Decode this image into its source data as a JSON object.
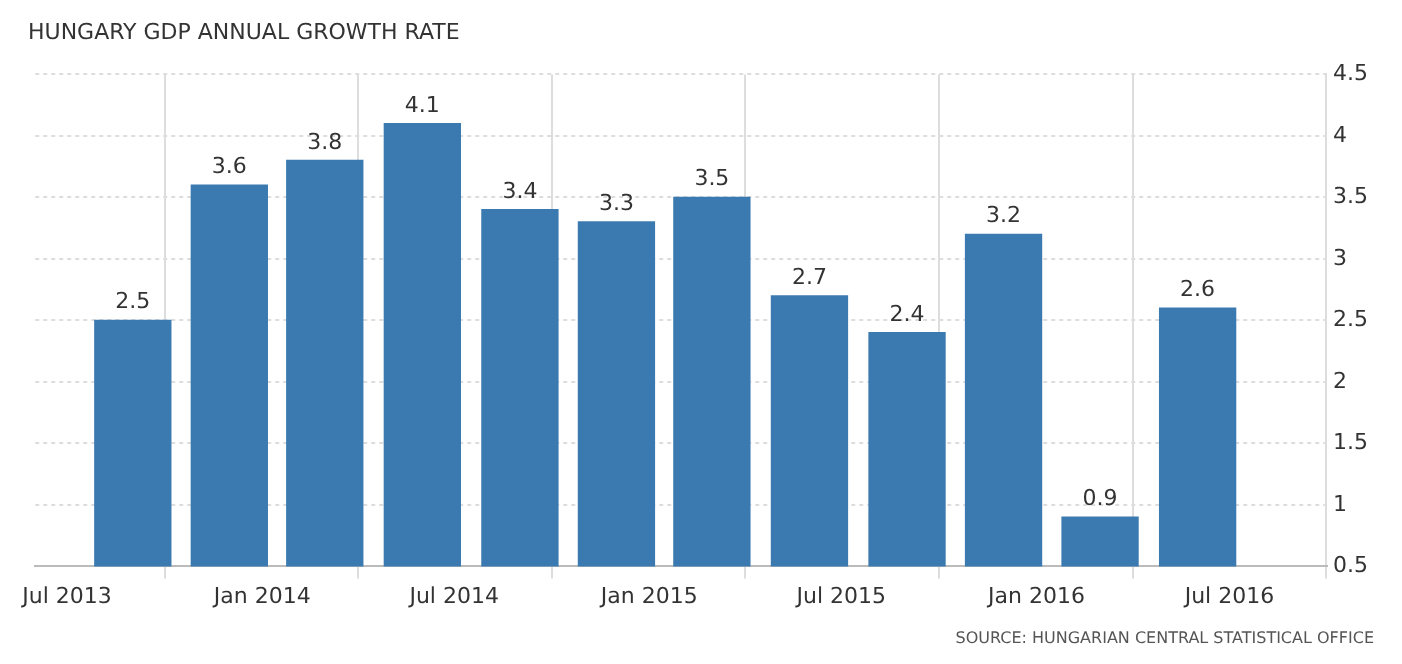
{
  "chart_data": {
    "type": "bar",
    "title": "HUNGARY GDP ANNUAL GROWTH RATE",
    "annotations": [
      "SOURCE: HUNGARIAN CENTRAL STATISTICAL OFFICE"
    ],
    "x": [
      "2013-09",
      "2013-12",
      "2014-03",
      "2014-06",
      "2014-09",
      "2014-12",
      "2015-03",
      "2015-06",
      "2015-09",
      "2015-12",
      "2016-03",
      "2016-06"
    ],
    "values": [
      2.5,
      3.6,
      3.8,
      4.1,
      3.4,
      3.3,
      3.5,
      2.7,
      2.4,
      3.2,
      0.9,
      2.6
    ],
    "color": "#3b7ab0",
    "data_labels": true,
    "grid": true,
    "legend": false,
    "xlim": [
      "2013-06",
      "2016-10"
    ],
    "xticks": [
      {
        "value": "2013-07",
        "label": "Jul 2013"
      },
      {
        "value": "2014-01",
        "label": "Jan 2014"
      },
      {
        "value": "2014-07",
        "label": "Jul 2014"
      },
      {
        "value": "2015-01",
        "label": "Jan 2015"
      },
      {
        "value": "2015-07",
        "label": "Jul 2015"
      },
      {
        "value": "2016-01",
        "label": "Jan 2016"
      },
      {
        "value": "2016-07",
        "label": "Jul 2016"
      }
    ],
    "ylim": [
      0.5,
      4.5
    ],
    "yticks": [
      0.5,
      1,
      1.5,
      2,
      2.5,
      3,
      3.5,
      4,
      4.5
    ]
  }
}
